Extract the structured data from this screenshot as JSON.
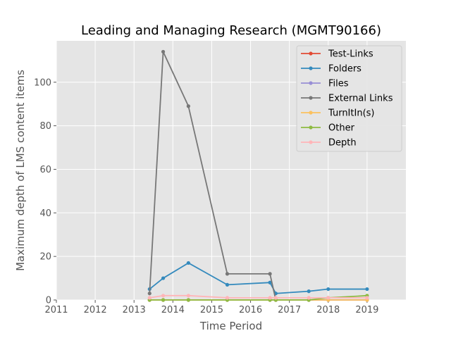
{
  "chart_data": {
    "type": "line",
    "title": "Leading and Managing Research (MGMT90166)",
    "xlabel": "Time Period",
    "ylabel": "Maximum depth of LMS content items",
    "xlim": [
      2011,
      2020
    ],
    "ylim": [
      0,
      119
    ],
    "x_ticks": [
      "2011",
      "2012",
      "2013",
      "2014",
      "2015",
      "2016",
      "2017",
      "2018",
      "2019"
    ],
    "y_ticks": [
      "0",
      "20",
      "40",
      "60",
      "80",
      "100"
    ],
    "grid": true,
    "legend_position": "top-right",
    "series": [
      {
        "name": "Test-Links",
        "color": "#e24a33",
        "x": [
          2013.4,
          2013.75,
          2014.4,
          2015.4,
          2016.5,
          2016.65,
          2017.5,
          2018.0,
          2019.0
        ],
        "y": [
          0,
          0,
          0,
          0,
          0,
          0,
          0,
          0,
          0
        ]
      },
      {
        "name": "Folders",
        "color": "#348abd",
        "x": [
          2013.4,
          2013.75,
          2014.4,
          2015.4,
          2016.5,
          2016.65,
          2017.5,
          2018.0,
          2019.0
        ],
        "y": [
          5,
          10,
          17,
          7,
          8,
          3,
          4,
          5,
          5
        ]
      },
      {
        "name": "Files",
        "color": "#988ed5",
        "x": [
          2013.4,
          2013.75,
          2014.4,
          2015.4,
          2016.5,
          2016.65,
          2017.5,
          2018.0,
          2019.0
        ],
        "y": [
          0,
          0,
          0,
          0,
          0,
          0,
          0,
          0,
          0
        ]
      },
      {
        "name": "External Links",
        "color": "#777777",
        "x": [
          2013.4,
          2013.75,
          2014.4,
          2015.4,
          2016.5,
          2016.65
        ],
        "y": [
          3,
          114,
          89,
          12,
          12,
          0
        ]
      },
      {
        "name": "TurnItIn(s)",
        "color": "#fbc15e",
        "x": [
          2013.4,
          2013.75,
          2014.4,
          2015.4,
          2016.5,
          2016.65,
          2017.5,
          2018.0,
          2019.0
        ],
        "y": [
          0,
          0,
          0,
          0,
          0,
          0,
          0,
          0,
          0
        ]
      },
      {
        "name": "Other",
        "color": "#8eba42",
        "x": [
          2013.4,
          2013.75,
          2014.4,
          2015.4,
          2016.5,
          2016.65,
          2017.5,
          2018.0,
          2019.0
        ],
        "y": [
          0,
          0,
          0,
          0,
          0,
          0,
          0,
          1,
          2
        ]
      },
      {
        "name": "Depth",
        "color": "#ffb5b8",
        "x": [
          2013.4,
          2013.75,
          2014.4,
          2015.4,
          2016.5,
          2016.65,
          2017.5,
          2018.0,
          2019.0
        ],
        "y": [
          1,
          2,
          2,
          1,
          1,
          1,
          1,
          1,
          1
        ]
      }
    ]
  }
}
